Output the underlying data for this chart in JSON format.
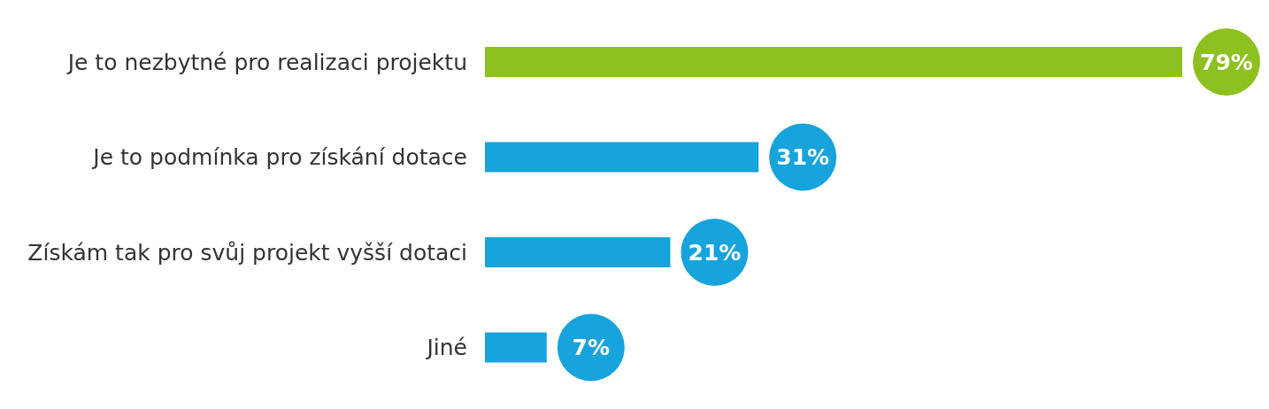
{
  "chart_data": {
    "type": "bar",
    "orientation": "horizontal",
    "categories": [
      "Je to nezbytné pro realizaci projektu",
      "Je to podmínka pro získání dotace",
      "Získám tak pro svůj projekt vyšší dotaci",
      "Jiné"
    ],
    "values": [
      79,
      31,
      21,
      7
    ],
    "colors": [
      "#8dc021",
      "#17a3dc",
      "#17a3dc",
      "#17a3dc"
    ],
    "value_labels": [
      "79%",
      "31%",
      "21%",
      "7%"
    ],
    "grid": false,
    "legend": false
  }
}
